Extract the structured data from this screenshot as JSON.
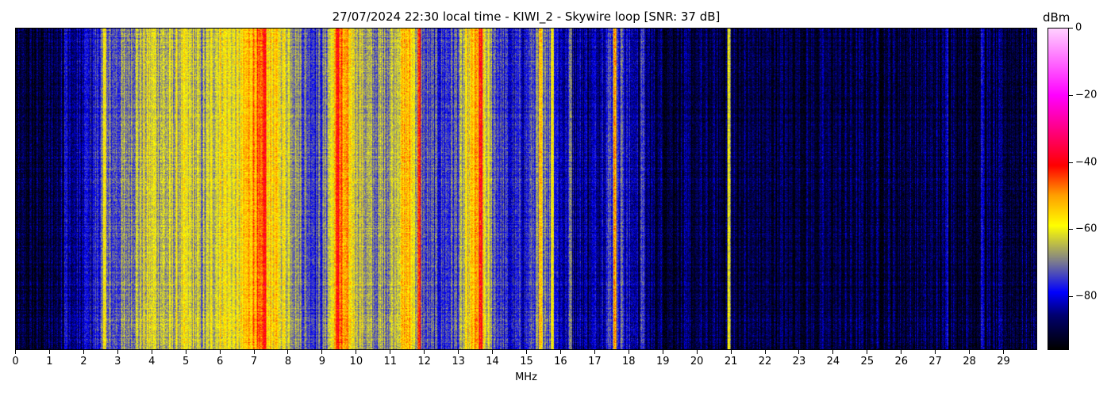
{
  "chart_data": {
    "type": "heatmap",
    "title": "27/07/2024 22:30 local time - KIWI_2 - Skywire loop [SNR: 37 dB]",
    "xlabel": "MHz",
    "xlim": [
      0,
      30
    ],
    "xticks": [
      "0",
      "1",
      "2",
      "3",
      "4",
      "5",
      "6",
      "7",
      "8",
      "9",
      "10",
      "11",
      "12",
      "13",
      "14",
      "15",
      "16",
      "17",
      "18",
      "19",
      "20",
      "21",
      "22",
      "23",
      "24",
      "25",
      "26",
      "27",
      "28",
      "29"
    ],
    "colorbar": {
      "label": "dBm",
      "range": [
        -96,
        0
      ],
      "ticks": [
        "0",
        "−20",
        "−40",
        "−60",
        "−80"
      ],
      "tick_values": [
        0,
        -20,
        -40,
        -60,
        -80
      ],
      "colormap": [
        {
          "value": -96,
          "color": "#000000"
        },
        {
          "value": -86,
          "color": "#00006e"
        },
        {
          "value": -79,
          "color": "#0000ff"
        },
        {
          "value": -70,
          "color": "#7a7a90"
        },
        {
          "value": -59,
          "color": "#ffff00"
        },
        {
          "value": -50,
          "color": "#ffa000"
        },
        {
          "value": -41,
          "color": "#ff0000"
        },
        {
          "value": -20,
          "color": "#ff00ff"
        },
        {
          "value": 0,
          "color": "#ffd0ff"
        }
      ]
    },
    "band_profile_bin_mhz": 0.5,
    "band_profile_dbm": [
      -92,
      -92,
      -90,
      -86,
      -84,
      -74,
      -72,
      -66,
      -62,
      -66,
      -62,
      -68,
      -58,
      -62,
      -48,
      -56,
      -62,
      -72,
      -74,
      -48,
      -62,
      -70,
      -66,
      -52,
      -74,
      -76,
      -72,
      -52,
      -70,
      -80,
      -78,
      -66,
      -82,
      -84,
      -84,
      -74,
      -82,
      -86,
      -89,
      -90,
      -90,
      -90,
      -90,
      -90,
      -90,
      -90,
      -90,
      -90,
      -90,
      -90,
      -90,
      -90,
      -90,
      -90,
      -90,
      -90,
      -90,
      -90,
      -90,
      -90
    ],
    "carriers": [
      {
        "mhz": 1.45,
        "dbm": -78
      },
      {
        "mhz": 2.05,
        "dbm": -80
      },
      {
        "mhz": 2.6,
        "dbm": -58
      },
      {
        "mhz": 7.3,
        "dbm": -42
      },
      {
        "mhz": 9.45,
        "dbm": -40
      },
      {
        "mhz": 11.85,
        "dbm": -44
      },
      {
        "mhz": 13.65,
        "dbm": -42
      },
      {
        "mhz": 15.4,
        "dbm": -55
      },
      {
        "mhz": 15.75,
        "dbm": -58
      },
      {
        "mhz": 16.3,
        "dbm": -70
      },
      {
        "mhz": 17.6,
        "dbm": -50
      },
      {
        "mhz": 17.8,
        "dbm": -72
      },
      {
        "mhz": 18.4,
        "dbm": -74
      },
      {
        "mhz": 20.95,
        "dbm": -62
      },
      {
        "mhz": 27.35,
        "dbm": -80
      },
      {
        "mhz": 28.4,
        "dbm": -80
      }
    ]
  }
}
